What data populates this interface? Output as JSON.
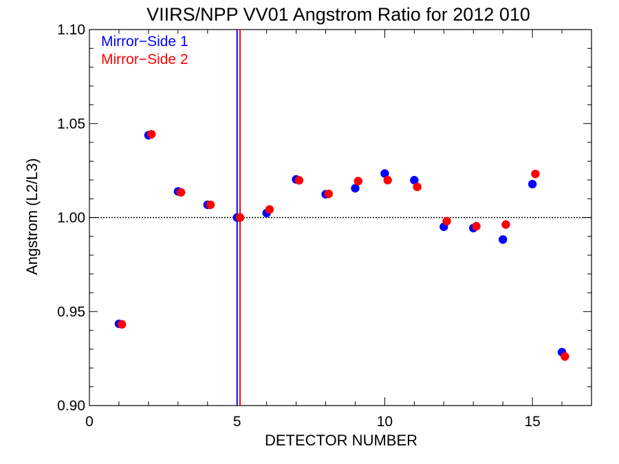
{
  "chart_data": {
    "type": "scatter",
    "title": "VIIRS/NPP VV01 Angstrom Ratio for 2012 010",
    "xlabel": "DETECTOR NUMBER",
    "ylabel": "Angstrom (L2/L3)",
    "xlim": [
      0,
      17
    ],
    "ylim": [
      0.9,
      1.1
    ],
    "xticks": [
      0,
      5,
      10,
      15
    ],
    "xtick_labels": [
      "0",
      "5",
      "10",
      "15"
    ],
    "yticks": [
      0.9,
      0.95,
      1.0,
      1.05,
      1.1
    ],
    "ytick_labels": [
      "0.90",
      "0.95",
      "1.00",
      "1.05",
      "1.10"
    ],
    "reference_hline": 1.0,
    "legend_position": "top-left",
    "series": [
      {
        "name": "Mirror−Side 1",
        "color": "#0000ff",
        "vline_x": 5.0,
        "x": [
          1,
          2,
          3,
          4,
          5,
          6,
          7,
          8,
          9,
          10,
          11,
          12,
          13,
          14,
          15,
          16
        ],
        "y": [
          0.9435,
          1.0438,
          1.0139,
          1.0068,
          1.0,
          1.0024,
          1.0203,
          1.0124,
          1.0156,
          1.0234,
          1.0199,
          0.9951,
          0.9944,
          0.9883,
          1.0178,
          0.9284
        ]
      },
      {
        "name": "Mirror−Side 2",
        "color": "#ff0000",
        "vline_x": 5.1,
        "x": [
          1.1,
          2.1,
          3.1,
          4.1,
          5.1,
          6.1,
          7.1,
          8.1,
          9.1,
          10.1,
          11.1,
          12.1,
          13.1,
          14.1,
          15.1,
          16.1
        ],
        "y": [
          0.9432,
          1.0443,
          1.0134,
          1.0068,
          1.0,
          1.0043,
          1.0198,
          1.0126,
          1.0194,
          1.0199,
          1.0163,
          0.9981,
          0.9954,
          0.9963,
          1.0232,
          0.9261
        ]
      }
    ]
  }
}
